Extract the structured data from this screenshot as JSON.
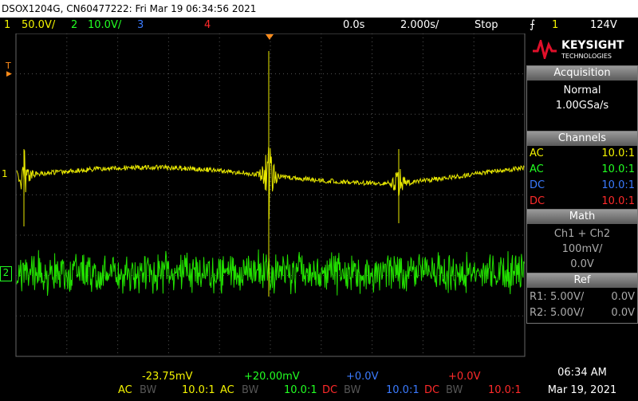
{
  "title_bar": "DSOX1204G, CN60477222: Fri Mar 19 06:34:56 2021",
  "status": {
    "ch1_num": "1",
    "ch1_scale": "50.0V/",
    "ch2_num": "2",
    "ch2_scale": "10.0V/",
    "ch3_num": "3",
    "ch4_num": "4",
    "time_offset": "0.0s",
    "time_scale": "2.000s/",
    "run_state": "Stop",
    "trigger_source": "1",
    "trigger_level": "124V"
  },
  "markers": {
    "trigger": "T",
    "ch1": "1",
    "ch2": "2"
  },
  "brand": {
    "name": "KEYSIGHT",
    "sub": "TECHNOLOGIES"
  },
  "acquisition": {
    "title": "Acquisition",
    "mode": "Normal",
    "rate": "1.00GSa/s"
  },
  "channels": {
    "title": "Channels",
    "rows": [
      [
        "AC",
        "10.0:1"
      ],
      [
        "AC",
        "10.0:1"
      ],
      [
        "DC",
        "10.0:1"
      ],
      [
        "DC",
        "10.0:1"
      ]
    ]
  },
  "math": {
    "title": "Math",
    "expr": "Ch1 + Ch2",
    "scale": "100mV/",
    "offset": "0.0V"
  },
  "ref": {
    "title": "Ref",
    "rows": [
      [
        "R1:",
        "5.00V/",
        "0.0V"
      ],
      [
        "R2:",
        "5.00V/",
        "0.0V"
      ]
    ]
  },
  "footer": {
    "channels": [
      {
        "offset": "-23.75mV",
        "coupling": "AC",
        "bw": "BW",
        "probe": "10.0:1"
      },
      {
        "offset": "+20.00mV",
        "coupling": "AC",
        "bw": "BW",
        "probe": "10.0:1"
      },
      {
        "offset": "+0.0V",
        "coupling": "DC",
        "bw": "BW",
        "probe": "10.0:1"
      },
      {
        "offset": "+0.0V",
        "coupling": "DC",
        "bw": "BW",
        "probe": "10.0:1"
      }
    ],
    "time": "06:34 AM",
    "date": "Mar 19, 2021"
  }
}
